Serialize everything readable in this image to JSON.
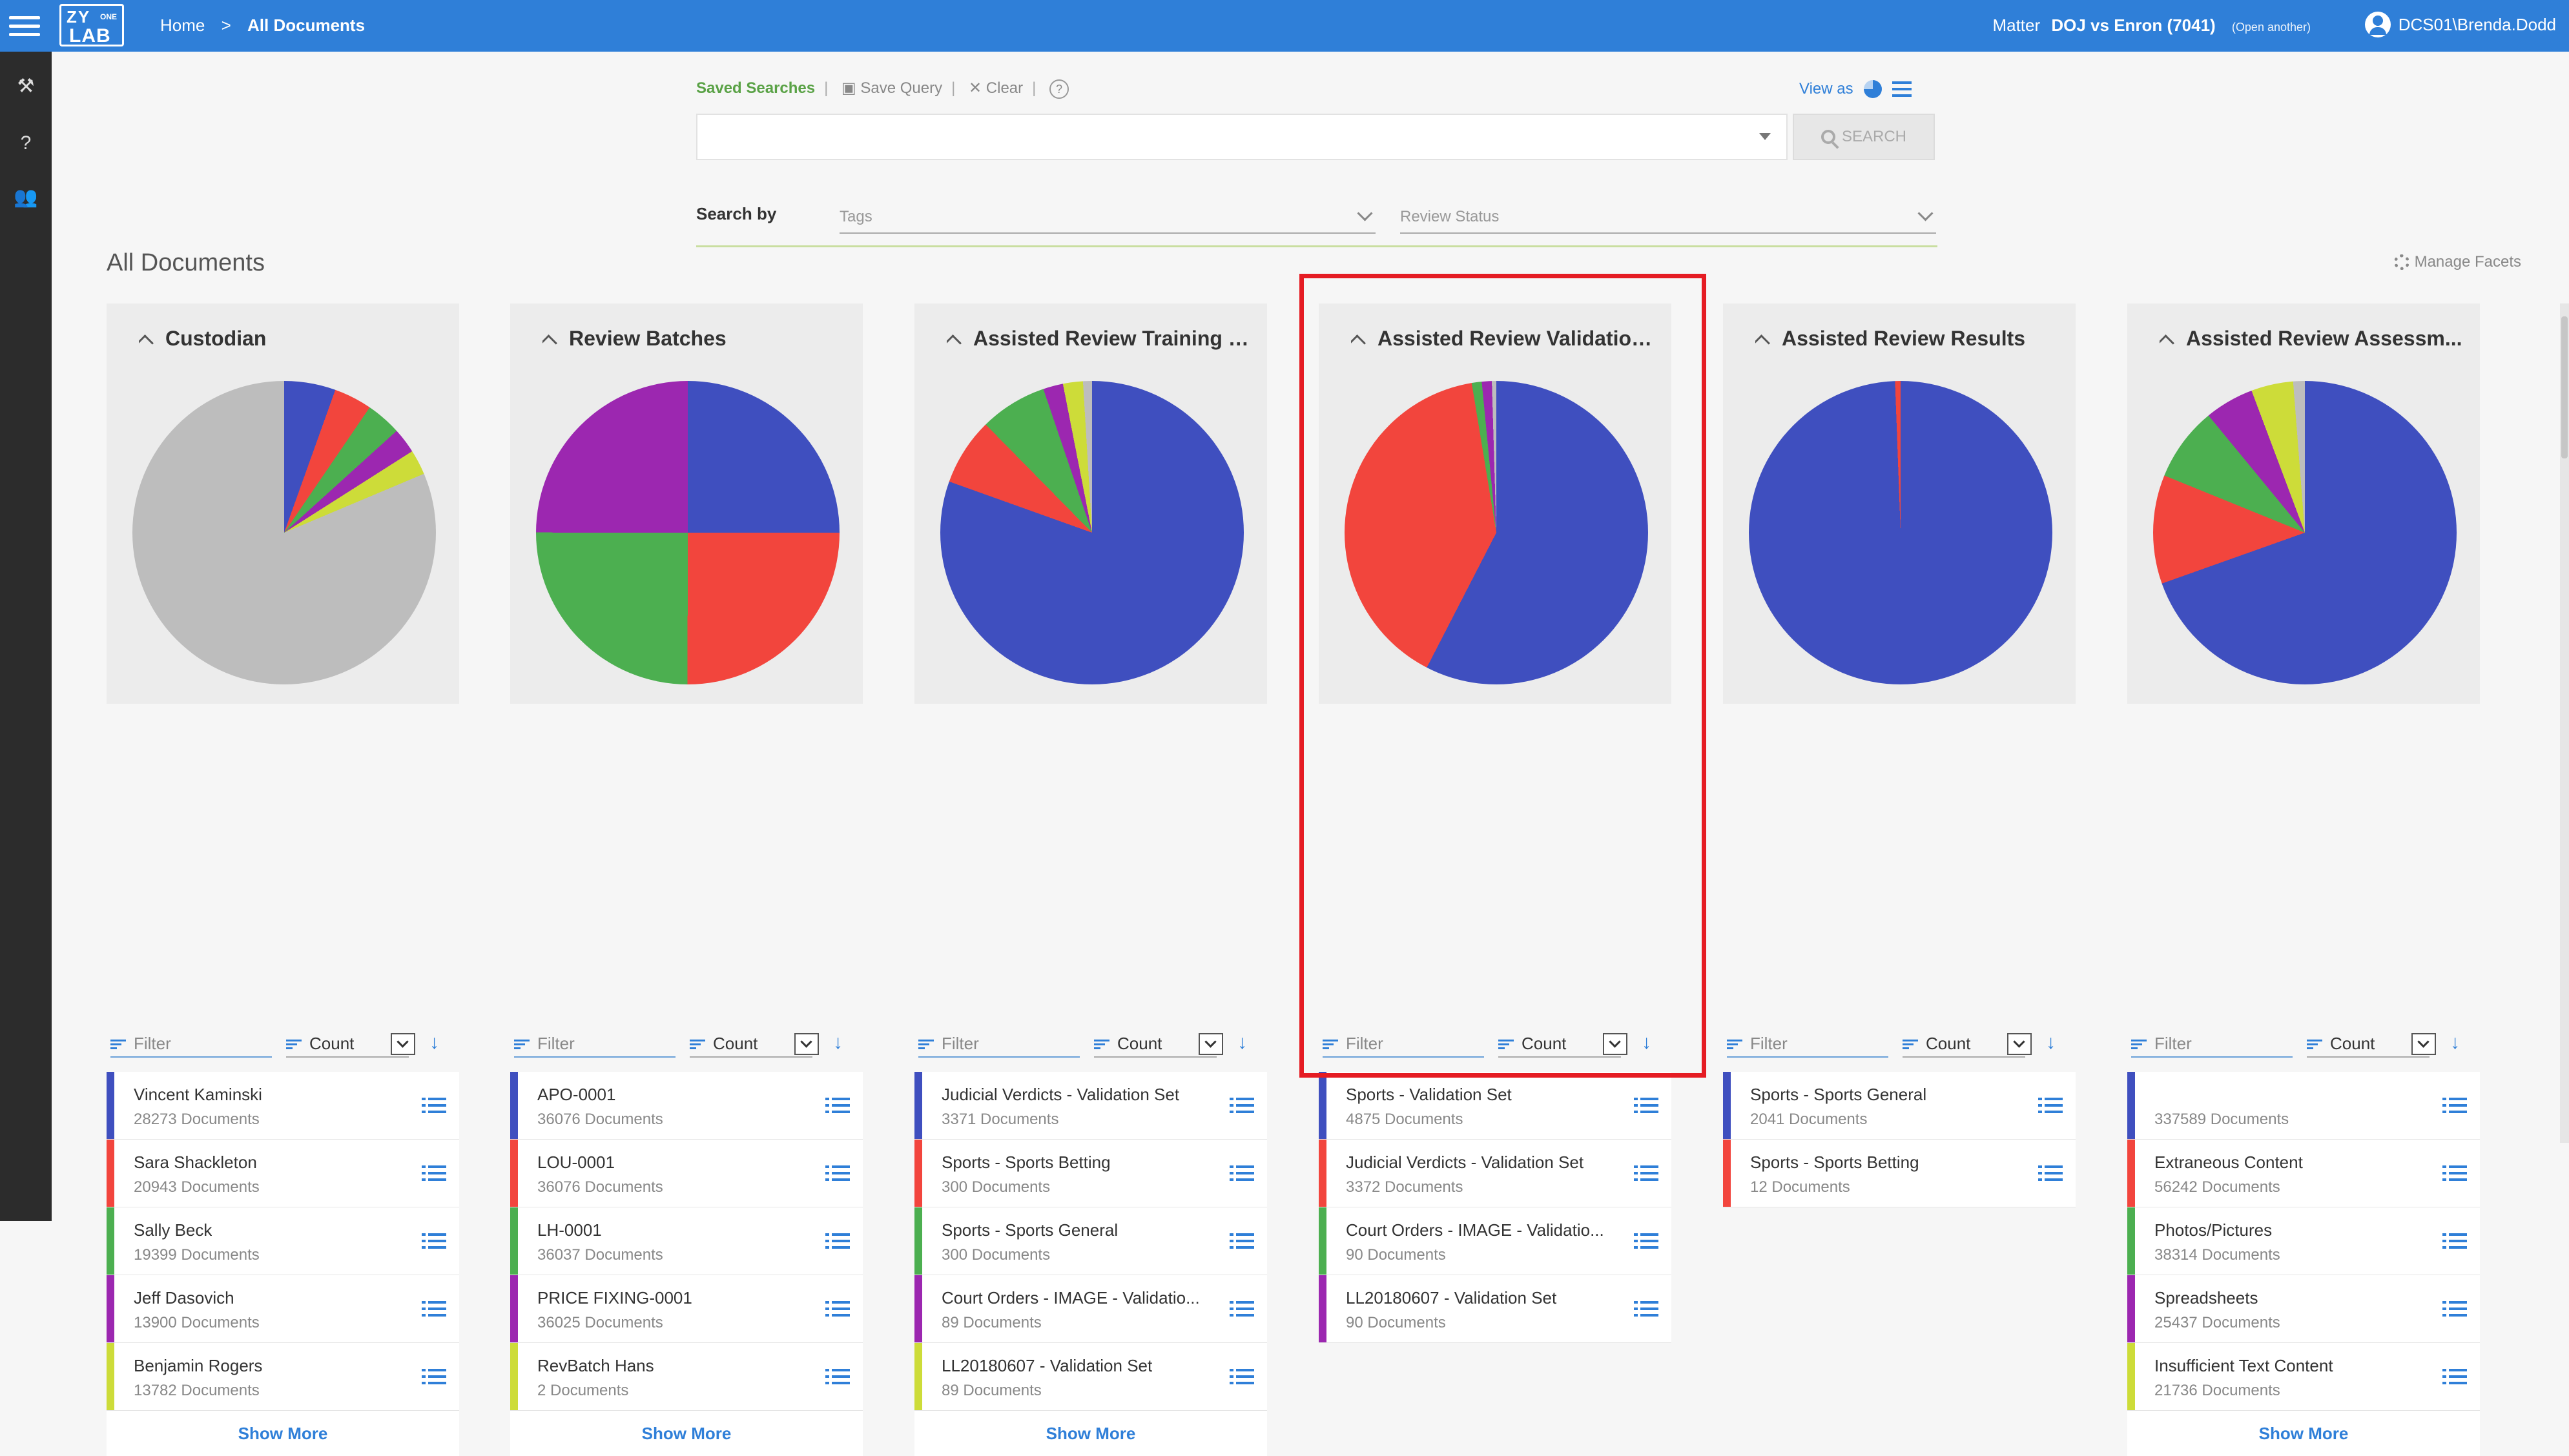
{
  "app": {
    "logo_top": "ZY",
    "logo_bottom": "LAB",
    "logo_small": "ONE",
    "breadcrumb_home": "Home",
    "breadcrumb_sep": ">",
    "breadcrumb_current": "All Documents",
    "matter_label": "Matter",
    "matter_name": "DOJ vs Enron (7041)",
    "matter_open": "(Open another)",
    "user_name": "DCS01\\Brenda.Dodd"
  },
  "search": {
    "saved_searches": "Saved Searches",
    "save_query": "Save Query",
    "clear": "Clear",
    "help": "?",
    "view_as": "View as",
    "search_button": "SEARCH",
    "query_value": "",
    "search_by_label": "Search by",
    "tags_placeholder": "Tags",
    "review_status_placeholder": "Review Status"
  },
  "page": {
    "title": "All Documents",
    "manage_facets": "Manage Facets"
  },
  "panel_controls": {
    "filter_placeholder": "Filter",
    "sort_label": "Count",
    "sort_direction_icon": "↓"
  },
  "colors": {
    "blue": "#3f4fbf",
    "red": "#f2453d",
    "green": "#4caf50",
    "purple": "#9c27b0",
    "yellow": "#cddc39",
    "gray": "#bdbdbd",
    "highlight": "#e51c23",
    "accent": "#2f7fd8"
  },
  "panels": [
    {
      "title": "Custodian",
      "show_more": "Show More",
      "items": [
        {
          "name": "Vincent Kaminski",
          "count": "28273 Documents",
          "color": "#3f4fbf"
        },
        {
          "name": "Sara Shackleton",
          "count": "20943 Documents",
          "color": "#f2453d"
        },
        {
          "name": "Sally Beck",
          "count": "19399 Documents",
          "color": "#4caf50"
        },
        {
          "name": "Jeff Dasovich",
          "count": "13900 Documents",
          "color": "#9c27b0"
        },
        {
          "name": "Benjamin Rogers",
          "count": "13782 Documents",
          "color": "#cddc39"
        }
      ]
    },
    {
      "title": "Review Batches",
      "show_more": "Show More",
      "items": [
        {
          "name": "APO-0001",
          "count": "36076 Documents",
          "color": "#3f4fbf"
        },
        {
          "name": "LOU-0001",
          "count": "36076 Documents",
          "color": "#f2453d"
        },
        {
          "name": "LH-0001",
          "count": "36037 Documents",
          "color": "#4caf50"
        },
        {
          "name": "PRICE FIXING-0001",
          "count": "36025 Documents",
          "color": "#9c27b0"
        },
        {
          "name": "RevBatch Hans",
          "count": "2 Documents",
          "color": "#cddc39"
        }
      ]
    },
    {
      "title": "Assisted Review Training B...",
      "show_more": "Show More",
      "items": [
        {
          "name": "Judicial Verdicts - Validation Set",
          "count": "3371 Documents",
          "color": "#3f4fbf"
        },
        {
          "name": "Sports - Sports Betting",
          "count": "300 Documents",
          "color": "#f2453d"
        },
        {
          "name": "Sports - Sports General",
          "count": "300 Documents",
          "color": "#4caf50"
        },
        {
          "name": "Court Orders - IMAGE - Validatio...",
          "count": "89 Documents",
          "color": "#9c27b0"
        },
        {
          "name": "LL20180607 - Validation Set",
          "count": "89 Documents",
          "color": "#cddc39"
        }
      ]
    },
    {
      "title": "Assisted Review Validation...",
      "show_more": "",
      "items": [
        {
          "name": "Sports - Validation Set",
          "count": "4875 Documents",
          "color": "#3f4fbf"
        },
        {
          "name": "Judicial Verdicts - Validation Set",
          "count": "3372 Documents",
          "color": "#f2453d"
        },
        {
          "name": "Court Orders - IMAGE - Validatio...",
          "count": "90 Documents",
          "color": "#4caf50"
        },
        {
          "name": "LL20180607 - Validation Set",
          "count": "90 Documents",
          "color": "#9c27b0"
        }
      ]
    },
    {
      "title": "Assisted Review Results",
      "show_more": "",
      "items": [
        {
          "name": "Sports - Sports General",
          "count": "2041 Documents",
          "color": "#3f4fbf"
        },
        {
          "name": "Sports - Sports Betting",
          "count": "12 Documents",
          "color": "#f2453d"
        }
      ]
    },
    {
      "title": "Assisted Review Assessm...",
      "show_more": "Show More",
      "items": [
        {
          "name": "",
          "count": "337589 Documents",
          "color": "#3f4fbf"
        },
        {
          "name": "Extraneous Content",
          "count": "56242 Documents",
          "color": "#f2453d"
        },
        {
          "name": "Photos/Pictures",
          "count": "38314 Documents",
          "color": "#4caf50"
        },
        {
          "name": "Spreadsheets",
          "count": "25437 Documents",
          "color": "#9c27b0"
        },
        {
          "name": "Insufficient Text Content",
          "count": "21736 Documents",
          "color": "#cddc39"
        }
      ]
    }
  ],
  "chart_data": [
    {
      "type": "pie",
      "labels": [
        "Vincent Kaminski",
        "Sara Shackleton",
        "Sally Beck",
        "Jeff Dasovich",
        "Benjamin Rogers",
        "Other"
      ],
      "values": [
        28273,
        20943,
        19399,
        13900,
        13782,
        420000
      ],
      "colors": [
        "#3f4fbf",
        "#f2453d",
        "#4caf50",
        "#9c27b0",
        "#cddc39",
        "#bdbdbd"
      ]
    },
    {
      "type": "pie",
      "labels": [
        "APO-0001",
        "LOU-0001",
        "LH-0001",
        "PRICE FIXING-0001",
        "RevBatch Hans"
      ],
      "values": [
        36076,
        36076,
        36037,
        36025,
        2
      ],
      "colors": [
        "#3f4fbf",
        "#f2453d",
        "#4caf50",
        "#9c27b0",
        "#cddc39"
      ]
    },
    {
      "type": "pie",
      "labels": [
        "Judicial Verdicts - Validation Set",
        "Sports - Sports Betting",
        "Sports - Sports General",
        "Court Orders - IMAGE - Validatio...",
        "LL20180607 - Validation Set",
        "Other"
      ],
      "values": [
        3371,
        300,
        300,
        89,
        89,
        40
      ],
      "colors": [
        "#3f4fbf",
        "#f2453d",
        "#4caf50",
        "#9c27b0",
        "#cddc39",
        "#bdbdbd"
      ]
    },
    {
      "type": "pie",
      "labels": [
        "Sports - Validation Set",
        "Judicial Verdicts - Validation Set",
        "Court Orders - IMAGE - Validatio...",
        "LL20180607 - Validation Set",
        "Other"
      ],
      "values": [
        4875,
        3372,
        90,
        90,
        40
      ],
      "colors": [
        "#3f4fbf",
        "#f2453d",
        "#4caf50",
        "#9c27b0",
        "#bdbdbd"
      ]
    },
    {
      "type": "pie",
      "labels": [
        "Sports - Sports General",
        "Sports - Sports Betting"
      ],
      "values": [
        2041,
        12
      ],
      "colors": [
        "#3f4fbf",
        "#f2453d"
      ]
    },
    {
      "type": "pie",
      "labels": [
        "(blank)",
        "Extraneous Content",
        "Photos/Pictures",
        "Spreadsheets",
        "Insufficient Text Content",
        "Other"
      ],
      "values": [
        337589,
        56242,
        38314,
        25437,
        21736,
        6000
      ],
      "colors": [
        "#3f4fbf",
        "#f2453d",
        "#4caf50",
        "#9c27b0",
        "#cddc39",
        "#bdbdbd"
      ]
    }
  ]
}
